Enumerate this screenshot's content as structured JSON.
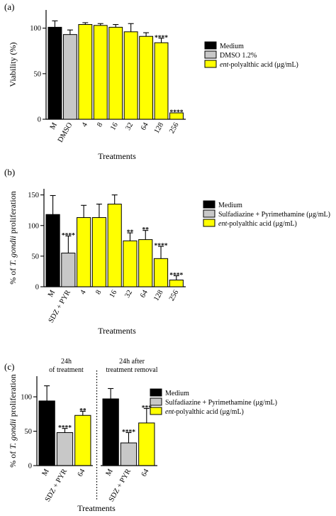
{
  "colors": {
    "medium": "#000000",
    "dmso": "#c8c8c8",
    "ent": "#ffff00",
    "control": "#c8c8c8"
  },
  "chart_data": [
    {
      "panel_label": "(a)",
      "type": "bar",
      "ylabel": "Viability (%)",
      "xlabel": "Treatments",
      "ylim": [
        0,
        120
      ],
      "yticks": [
        0,
        50,
        100
      ],
      "categories": [
        "M",
        "DMSO",
        "4",
        "8",
        "16",
        "32",
        "64",
        "128",
        "256"
      ],
      "values": [
        101,
        93,
        104,
        103,
        101,
        96,
        91,
        84,
        7
      ],
      "errors": [
        7,
        5,
        2,
        2,
        3,
        9,
        4,
        5,
        0
      ],
      "significance": [
        "",
        "",
        "",
        "",
        "",
        "",
        "",
        "****",
        "****"
      ],
      "bar_groups": [
        "medium",
        "dmso",
        "ent",
        "ent",
        "ent",
        "ent",
        "ent",
        "ent",
        "ent"
      ],
      "legend": [
        {
          "key": "medium",
          "label": "Medium"
        },
        {
          "key": "dmso",
          "label": "DMSO 1.2%"
        },
        {
          "key": "ent",
          "italic": "ent",
          "label": "-polyalthic acid (μg/mL)"
        }
      ],
      "legend_position": "right"
    },
    {
      "panel_label": "(b)",
      "type": "bar",
      "ylabel_prefix": "% of ",
      "ylabel_italic": "T. gondii",
      "ylabel_suffix": " proliferation",
      "xlabel": "Treatments",
      "ylim": [
        0,
        160
      ],
      "yticks": [
        0,
        50,
        100,
        150
      ],
      "categories": [
        "M",
        "SDZ + PYR",
        "4",
        "8",
        "16",
        "32",
        "64",
        "128",
        "256"
      ],
      "values": [
        118,
        55,
        113,
        113,
        135,
        75,
        77,
        46,
        11
      ],
      "errors": [
        31,
        28,
        20,
        22,
        15,
        13,
        15,
        20,
        7
      ],
      "significance": [
        "",
        "****",
        "",
        "",
        "",
        "**",
        "**",
        "****",
        "****"
      ],
      "bar_groups": [
        "medium",
        "control",
        "ent",
        "ent",
        "ent",
        "ent",
        "ent",
        "ent",
        "ent"
      ],
      "legend": [
        {
          "key": "medium",
          "label": "Medium"
        },
        {
          "key": "control",
          "label": "Sulfadiazine + Pyrimethamine (μg/mL)"
        },
        {
          "key": "ent",
          "italic": "ent",
          "label": "-polyalthic acid (μg/mL)"
        }
      ],
      "legend_position": "right"
    },
    {
      "panel_label": "(c)",
      "type": "bar",
      "ylabel_prefix": "% of ",
      "ylabel_italic": "T. gondii",
      "ylabel_suffix": " proliferation",
      "xlabel": "Treatments",
      "ylim": [
        0,
        130
      ],
      "yticks": [
        0,
        50,
        100
      ],
      "groups": [
        {
          "title_lines": [
            "24h",
            "of treatment"
          ]
        },
        {
          "title_lines": [
            "24h after",
            "treatment removal"
          ]
        }
      ],
      "categories": [
        "M",
        "SDZ + PYR",
        "64",
        "M",
        "SDZ + PYR",
        "64"
      ],
      "values": [
        94,
        48,
        73,
        97,
        33,
        62
      ],
      "errors": [
        22,
        6,
        6,
        15,
        15,
        21
      ],
      "significance": [
        "",
        "****",
        "**",
        "",
        "****",
        "***"
      ],
      "bar_groups": [
        "medium",
        "control",
        "ent",
        "medium",
        "control",
        "ent"
      ],
      "legend": [
        {
          "key": "medium",
          "label": "Medium"
        },
        {
          "key": "control",
          "label": "Sulfadiazine + Pyrimethamine (μg/mL)"
        },
        {
          "key": "ent",
          "italic": "ent",
          "label": "-polyalthic acid (μg/mL)"
        }
      ],
      "legend_position": "right"
    }
  ]
}
